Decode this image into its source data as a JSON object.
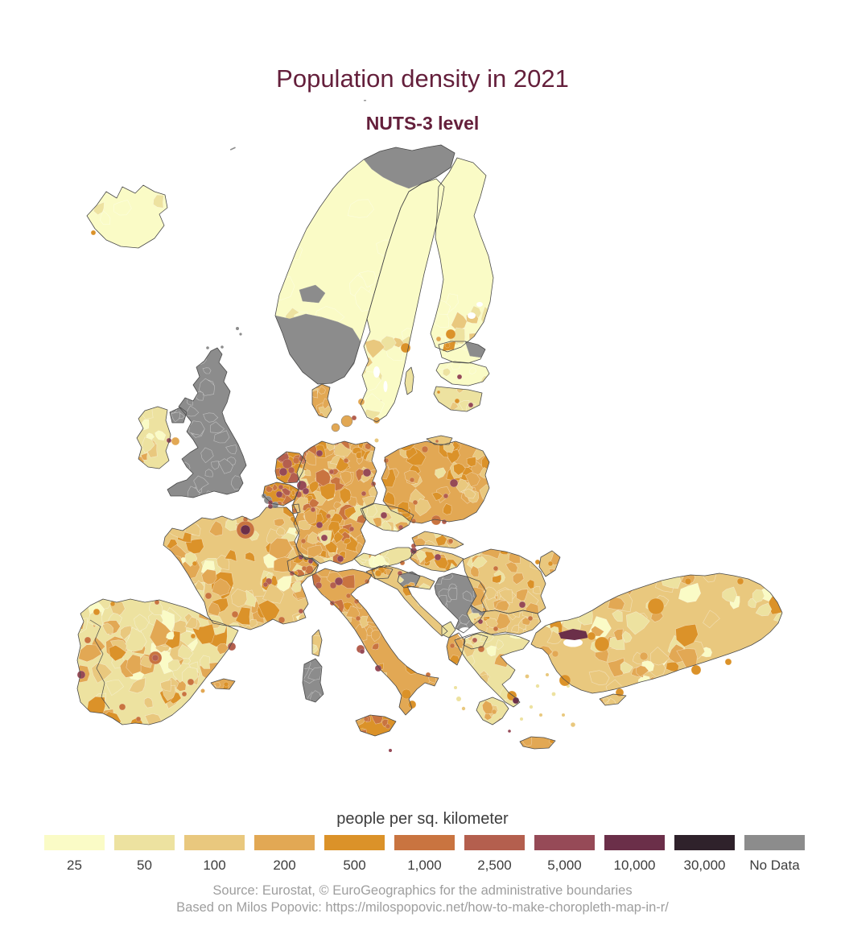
{
  "header": {
    "title": "Population density in 2021",
    "subtitle": "NUTS-3 level",
    "title_color": "#641f3b"
  },
  "legend": {
    "title": "people per sq. kilometer",
    "items": [
      {
        "label": "25",
        "color": "#fafbc6"
      },
      {
        "label": "50",
        "color": "#ede2a0"
      },
      {
        "label": "100",
        "color": "#e9c87e"
      },
      {
        "label": "200",
        "color": "#e2a854"
      },
      {
        "label": "500",
        "color": "#db9229"
      },
      {
        "label": "1,000",
        "color": "#c97440"
      },
      {
        "label": "2,500",
        "color": "#b45f4e"
      },
      {
        "label": "5,000",
        "color": "#964a57"
      },
      {
        "label": "10,000",
        "color": "#6b2f49"
      },
      {
        "label": "30,000",
        "color": "#2f222b"
      },
      {
        "label": "No Data",
        "color": "#8c8c8c"
      }
    ]
  },
  "footer": {
    "line1": "Source: Eurostat, © EuroGeographics for the administrative boundaries",
    "line2": "Based on Milos Popovic: https://milospopovic.net/how-to-make-choropleth-map-in-r/"
  },
  "chart_data": {
    "type": "choropleth_map",
    "title": "Population density in 2021",
    "subtitle": "NUTS-3 level",
    "unit": "people per sq. kilometer",
    "breaks": [
      "25",
      "50",
      "100",
      "200",
      "500",
      "1,000",
      "2,500",
      "5,000",
      "10,000",
      "30,000"
    ],
    "no_data_label": "No Data",
    "colors": [
      "#fafbc6",
      "#ede2a0",
      "#e9c87e",
      "#e2a854",
      "#db9229",
      "#c97440",
      "#b45f4e",
      "#964a57",
      "#6b2f49",
      "#2f222b",
      "#8c8c8c"
    ],
    "legend_position": "bottom",
    "no_data_areas": [
      "United Kingdom",
      "Northern Ireland",
      "southern Norway",
      "northern Norway",
      "Serbia",
      "Sardinia",
      "north-east Estonia"
    ],
    "dense_hotspots": [
      "Paris",
      "London area (no data)",
      "Randstad",
      "Ruhr",
      "Berlin",
      "Hamburg",
      "Munich",
      "Frankfurt",
      "Vienna",
      "Prague",
      "Warsaw",
      "Budapest",
      "Bucharest",
      "Sofia",
      "Madrid",
      "Barcelona",
      "Lisbon",
      "Milan",
      "Rome",
      "Naples",
      "Athens",
      "Istanbul",
      "Riga",
      "Vilnius",
      "Malta"
    ]
  },
  "map": {
    "regions": [
      {
        "id": "iceland",
        "bucket": 0
      },
      {
        "id": "norway",
        "bucket": 0
      },
      {
        "id": "sweden",
        "bucket": 0
      },
      {
        "id": "finland",
        "bucket": 0
      },
      {
        "id": "estonia",
        "bucket": 0
      },
      {
        "id": "latvia",
        "bucket": 0
      },
      {
        "id": "lithuania",
        "bucket": 1
      },
      {
        "id": "kaliningrad",
        "bucket": 2
      },
      {
        "id": "denmark",
        "bucket": 3
      },
      {
        "id": "uk",
        "bucket": 10
      },
      {
        "id": "northern-ireland",
        "bucket": 10
      },
      {
        "id": "ireland",
        "bucket": 1
      },
      {
        "id": "netherlands",
        "bucket": 4
      },
      {
        "id": "belgium",
        "bucket": 4
      },
      {
        "id": "luxembourg",
        "bucket": 4
      },
      {
        "id": "germany",
        "bucket": 3
      },
      {
        "id": "czechia",
        "bucket": 1
      },
      {
        "id": "poland",
        "bucket": 3
      },
      {
        "id": "france",
        "bucket": 2
      },
      {
        "id": "iberia",
        "bucket": 1
      },
      {
        "id": "switzerland",
        "bucket": 3
      },
      {
        "id": "austria",
        "bucket": 1
      },
      {
        "id": "slovakia",
        "bucket": 2
      },
      {
        "id": "hungary",
        "bucket": 2
      },
      {
        "id": "slovenia",
        "bucket": 3
      },
      {
        "id": "croatia",
        "bucket": 2
      },
      {
        "id": "serbia",
        "bucket": 10
      },
      {
        "id": "bosnia-north",
        "bucket": 10
      },
      {
        "id": "montenegro",
        "bucket": 1
      },
      {
        "id": "albania",
        "bucket": 3
      },
      {
        "id": "north-macedonia",
        "bucket": 2
      },
      {
        "id": "romania",
        "bucket": 2
      },
      {
        "id": "moldova",
        "bucket": 2
      },
      {
        "id": "bulgaria",
        "bucket": 2
      },
      {
        "id": "greece",
        "bucket": 1
      },
      {
        "id": "peloponnese",
        "bucket": 1
      },
      {
        "id": "crete",
        "bucket": 3
      },
      {
        "id": "italy",
        "bucket": 3
      },
      {
        "id": "sicily",
        "bucket": 4
      },
      {
        "id": "sardinia",
        "bucket": 10
      },
      {
        "id": "corsica",
        "bucket": 2
      },
      {
        "id": "balearics",
        "bucket": 3
      },
      {
        "id": "gotland",
        "bucket": 1
      },
      {
        "id": "turkey",
        "bucket": 2
      },
      {
        "id": "cyprus",
        "bucket": 2
      },
      {
        "id": "norway-gray-north",
        "bucket": 10
      },
      {
        "id": "norway-gray-south",
        "bucket": 10
      },
      {
        "id": "norway-gray-mid",
        "bucket": 10
      },
      {
        "id": "estonia-gray",
        "bucket": 10
      },
      {
        "id": "estonia-tallinn",
        "bucket": 4
      },
      {
        "id": "istanbul",
        "bucket": 8
      }
    ]
  }
}
